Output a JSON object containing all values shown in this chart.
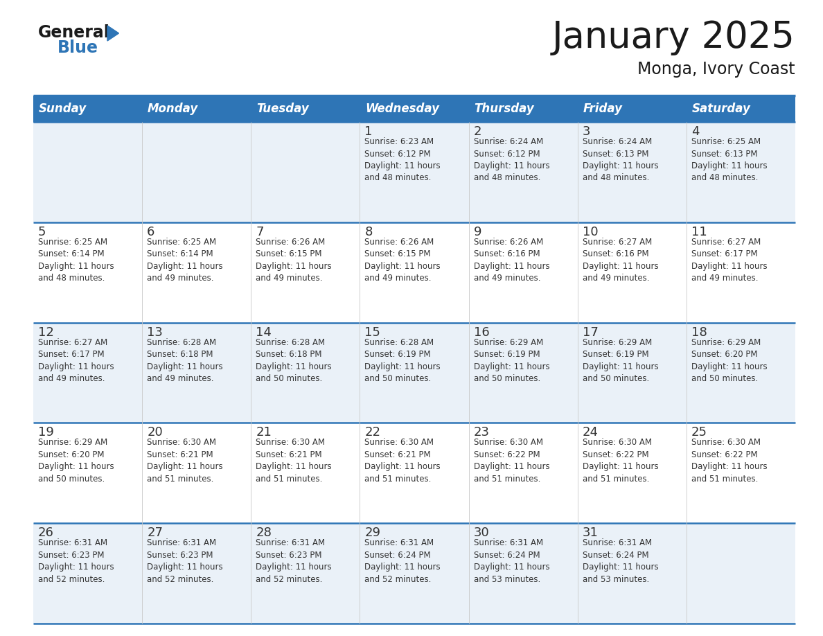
{
  "title": "January 2025",
  "subtitle": "Monga, Ivory Coast",
  "header_color": "#2e75b6",
  "header_text_color": "#ffffff",
  "cell_bg_even": "#eaf1f8",
  "cell_bg_odd": "#ffffff",
  "border_color": "#2e75b6",
  "text_color": "#333333",
  "days_of_week": [
    "Sunday",
    "Monday",
    "Tuesday",
    "Wednesday",
    "Thursday",
    "Friday",
    "Saturday"
  ],
  "calendar_data": [
    [
      {
        "day": "",
        "info": ""
      },
      {
        "day": "",
        "info": ""
      },
      {
        "day": "",
        "info": ""
      },
      {
        "day": "1",
        "info": "Sunrise: 6:23 AM\nSunset: 6:12 PM\nDaylight: 11 hours\nand 48 minutes."
      },
      {
        "day": "2",
        "info": "Sunrise: 6:24 AM\nSunset: 6:12 PM\nDaylight: 11 hours\nand 48 minutes."
      },
      {
        "day": "3",
        "info": "Sunrise: 6:24 AM\nSunset: 6:13 PM\nDaylight: 11 hours\nand 48 minutes."
      },
      {
        "day": "4",
        "info": "Sunrise: 6:25 AM\nSunset: 6:13 PM\nDaylight: 11 hours\nand 48 minutes."
      }
    ],
    [
      {
        "day": "5",
        "info": "Sunrise: 6:25 AM\nSunset: 6:14 PM\nDaylight: 11 hours\nand 48 minutes."
      },
      {
        "day": "6",
        "info": "Sunrise: 6:25 AM\nSunset: 6:14 PM\nDaylight: 11 hours\nand 49 minutes."
      },
      {
        "day": "7",
        "info": "Sunrise: 6:26 AM\nSunset: 6:15 PM\nDaylight: 11 hours\nand 49 minutes."
      },
      {
        "day": "8",
        "info": "Sunrise: 6:26 AM\nSunset: 6:15 PM\nDaylight: 11 hours\nand 49 minutes."
      },
      {
        "day": "9",
        "info": "Sunrise: 6:26 AM\nSunset: 6:16 PM\nDaylight: 11 hours\nand 49 minutes."
      },
      {
        "day": "10",
        "info": "Sunrise: 6:27 AM\nSunset: 6:16 PM\nDaylight: 11 hours\nand 49 minutes."
      },
      {
        "day": "11",
        "info": "Sunrise: 6:27 AM\nSunset: 6:17 PM\nDaylight: 11 hours\nand 49 minutes."
      }
    ],
    [
      {
        "day": "12",
        "info": "Sunrise: 6:27 AM\nSunset: 6:17 PM\nDaylight: 11 hours\nand 49 minutes."
      },
      {
        "day": "13",
        "info": "Sunrise: 6:28 AM\nSunset: 6:18 PM\nDaylight: 11 hours\nand 49 minutes."
      },
      {
        "day": "14",
        "info": "Sunrise: 6:28 AM\nSunset: 6:18 PM\nDaylight: 11 hours\nand 50 minutes."
      },
      {
        "day": "15",
        "info": "Sunrise: 6:28 AM\nSunset: 6:19 PM\nDaylight: 11 hours\nand 50 minutes."
      },
      {
        "day": "16",
        "info": "Sunrise: 6:29 AM\nSunset: 6:19 PM\nDaylight: 11 hours\nand 50 minutes."
      },
      {
        "day": "17",
        "info": "Sunrise: 6:29 AM\nSunset: 6:19 PM\nDaylight: 11 hours\nand 50 minutes."
      },
      {
        "day": "18",
        "info": "Sunrise: 6:29 AM\nSunset: 6:20 PM\nDaylight: 11 hours\nand 50 minutes."
      }
    ],
    [
      {
        "day": "19",
        "info": "Sunrise: 6:29 AM\nSunset: 6:20 PM\nDaylight: 11 hours\nand 50 minutes."
      },
      {
        "day": "20",
        "info": "Sunrise: 6:30 AM\nSunset: 6:21 PM\nDaylight: 11 hours\nand 51 minutes."
      },
      {
        "day": "21",
        "info": "Sunrise: 6:30 AM\nSunset: 6:21 PM\nDaylight: 11 hours\nand 51 minutes."
      },
      {
        "day": "22",
        "info": "Sunrise: 6:30 AM\nSunset: 6:21 PM\nDaylight: 11 hours\nand 51 minutes."
      },
      {
        "day": "23",
        "info": "Sunrise: 6:30 AM\nSunset: 6:22 PM\nDaylight: 11 hours\nand 51 minutes."
      },
      {
        "day": "24",
        "info": "Sunrise: 6:30 AM\nSunset: 6:22 PM\nDaylight: 11 hours\nand 51 minutes."
      },
      {
        "day": "25",
        "info": "Sunrise: 6:30 AM\nSunset: 6:22 PM\nDaylight: 11 hours\nand 51 minutes."
      }
    ],
    [
      {
        "day": "26",
        "info": "Sunrise: 6:31 AM\nSunset: 6:23 PM\nDaylight: 11 hours\nand 52 minutes."
      },
      {
        "day": "27",
        "info": "Sunrise: 6:31 AM\nSunset: 6:23 PM\nDaylight: 11 hours\nand 52 minutes."
      },
      {
        "day": "28",
        "info": "Sunrise: 6:31 AM\nSunset: 6:23 PM\nDaylight: 11 hours\nand 52 minutes."
      },
      {
        "day": "29",
        "info": "Sunrise: 6:31 AM\nSunset: 6:24 PM\nDaylight: 11 hours\nand 52 minutes."
      },
      {
        "day": "30",
        "info": "Sunrise: 6:31 AM\nSunset: 6:24 PM\nDaylight: 11 hours\nand 53 minutes."
      },
      {
        "day": "31",
        "info": "Sunrise: 6:31 AM\nSunset: 6:24 PM\nDaylight: 11 hours\nand 53 minutes."
      },
      {
        "day": "",
        "info": ""
      }
    ]
  ],
  "logo_general_color": "#1a1a1a",
  "logo_blue_color": "#2e75b6",
  "title_fontsize": 38,
  "subtitle_fontsize": 17,
  "day_number_fontsize": 13,
  "cell_text_fontsize": 8.5,
  "header_fontsize": 12
}
